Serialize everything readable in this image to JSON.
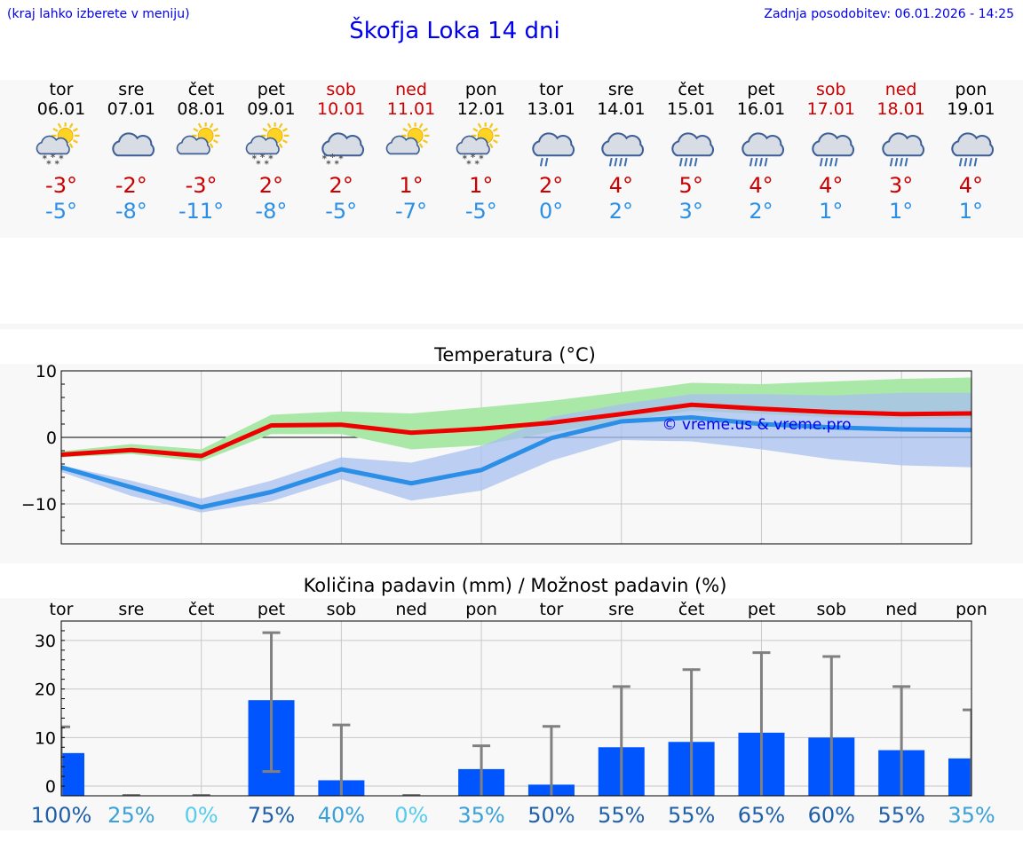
{
  "header": {
    "hint": "(kraj lahko izberete v meniju)",
    "updated": "Zadnja posodobitev: 06.01.2026 - 14:25",
    "title": "Škofja Loka 14 dni"
  },
  "days": [
    {
      "name": "tor",
      "date": "06.01",
      "weekend": false,
      "icon": "sun-cloud-snow",
      "tmax": "-3°",
      "tmin": "-5°"
    },
    {
      "name": "sre",
      "date": "07.01",
      "weekend": false,
      "icon": "cloud",
      "tmax": "-2°",
      "tmin": "-8°"
    },
    {
      "name": "čet",
      "date": "08.01",
      "weekend": false,
      "icon": "sun-cloud",
      "tmax": "-3°",
      "tmin": "-11°"
    },
    {
      "name": "pet",
      "date": "09.01",
      "weekend": false,
      "icon": "sun-cloud-snow",
      "tmax": "2°",
      "tmin": "-8°"
    },
    {
      "name": "sob",
      "date": "10.01",
      "weekend": true,
      "icon": "cloud-snow",
      "tmax": "2°",
      "tmin": "-5°"
    },
    {
      "name": "ned",
      "date": "11.01",
      "weekend": true,
      "icon": "sun-cloud",
      "tmax": "1°",
      "tmin": "-7°"
    },
    {
      "name": "pon",
      "date": "12.01",
      "weekend": false,
      "icon": "sun-cloud-snow",
      "tmax": "1°",
      "tmin": "-5°"
    },
    {
      "name": "tor",
      "date": "13.01",
      "weekend": false,
      "icon": "cloud-rain-light",
      "tmax": "2°",
      "tmin": "0°"
    },
    {
      "name": "sre",
      "date": "14.01",
      "weekend": false,
      "icon": "cloud-rain",
      "tmax": "4°",
      "tmin": "2°"
    },
    {
      "name": "čet",
      "date": "15.01",
      "weekend": false,
      "icon": "cloud-rain",
      "tmax": "5°",
      "tmin": "3°"
    },
    {
      "name": "pet",
      "date": "16.01",
      "weekend": false,
      "icon": "cloud-rain",
      "tmax": "4°",
      "tmin": "2°"
    },
    {
      "name": "sob",
      "date": "17.01",
      "weekend": true,
      "icon": "cloud-rain",
      "tmax": "4°",
      "tmin": "1°"
    },
    {
      "name": "ned",
      "date": "18.01",
      "weekend": true,
      "icon": "cloud-rain",
      "tmax": "3°",
      "tmin": "1°"
    },
    {
      "name": "pon",
      "date": "19.01",
      "weekend": false,
      "icon": "cloud-rain",
      "tmax": "4°",
      "tmin": "1°"
    }
  ],
  "chart_data": [
    {
      "type": "line",
      "title": "Temperatura (°C)",
      "watermark": "© vreme.us & vreme.pro",
      "ylim": [
        -16,
        10
      ],
      "yticks": [
        10,
        0,
        -10
      ],
      "ytick_labels": [
        "10",
        "0",
        "−10"
      ],
      "x": [
        0,
        1,
        2,
        3,
        4,
        5,
        6,
        7,
        8,
        9,
        10,
        11,
        12,
        13
      ],
      "series": [
        {
          "name": "max",
          "color": "#ee0000",
          "values": [
            -2.6,
            -1.9,
            -2.8,
            1.8,
            1.9,
            0.7,
            1.3,
            2.2,
            3.5,
            4.9,
            4.3,
            3.8,
            3.5,
            3.6
          ],
          "band_low": [
            -3.0,
            -2.5,
            -3.6,
            0.5,
            0.5,
            -1.8,
            -1.2,
            0.8,
            2.4,
            4.0,
            3.5,
            3.0,
            2.8,
            2.8
          ],
          "band_high": [
            -2.1,
            -1.0,
            -1.8,
            3.4,
            3.9,
            3.6,
            4.5,
            5.5,
            6.8,
            8.2,
            8.0,
            8.4,
            8.8,
            9.0
          ],
          "band_color": "#aae8a8"
        },
        {
          "name": "min",
          "color": "#2b8fe8",
          "values": [
            -4.5,
            -7.5,
            -10.5,
            -8.2,
            -4.8,
            -6.9,
            -4.9,
            -0.1,
            2.4,
            3.0,
            2.0,
            1.5,
            1.2,
            1.1
          ],
          "band_low": [
            -5.2,
            -8.8,
            -11.3,
            -9.6,
            -6.3,
            -9.5,
            -8.0,
            -3.5,
            -0.4,
            -0.6,
            -1.8,
            -3.3,
            -4.2,
            -4.5
          ],
          "band_high": [
            -4.2,
            -6.5,
            -9.2,
            -6.5,
            -3.0,
            -3.8,
            -1.3,
            3.1,
            5.0,
            6.5,
            6.5,
            6.3,
            6.7,
            6.7
          ],
          "band_color": "#a8c0f0"
        }
      ]
    },
    {
      "type": "bar",
      "title": "Količina padavin (mm) / Možnost padavin (%)",
      "categories": [
        "tor",
        "sre",
        "čet",
        "pet",
        "sob",
        "ned",
        "pon",
        "tor",
        "sre",
        "čet",
        "pet",
        "sob",
        "ned",
        "pon"
      ],
      "ylim": [
        -2,
        34
      ],
      "yticks": [
        30,
        20,
        10,
        0
      ],
      "ytick_labels": [
        "30",
        "20",
        "10",
        "0"
      ],
      "values": [
        6.8,
        0,
        0,
        17.7,
        1.2,
        0,
        3.5,
        0.3,
        8.0,
        9.1,
        11.0,
        10.0,
        7.4,
        5.7
      ],
      "error_low": [
        0,
        0,
        0,
        3.0,
        0,
        0,
        0,
        0,
        0,
        0,
        0,
        0,
        0,
        0
      ],
      "error_high": [
        12.2,
        0,
        0,
        31.6,
        12.6,
        0,
        8.3,
        12.3,
        20.5,
        24.0,
        27.5,
        26.7,
        20.5,
        15.7
      ],
      "probability": [
        "100%",
        "25%",
        "0%",
        "75%",
        "40%",
        "0%",
        "35%",
        "50%",
        "55%",
        "55%",
        "65%",
        "60%",
        "55%",
        "35%"
      ],
      "probability_colors": [
        "#1f5fa8",
        "#3aa0d8",
        "#55ccee",
        "#1f5fa8",
        "#3aa0d8",
        "#55ccee",
        "#3aa0d8",
        "#1f5fa8",
        "#1f5fa8",
        "#1f5fa8",
        "#1f5fa8",
        "#1f5fa8",
        "#1f5fa8",
        "#3aa0d8"
      ],
      "bar_color": "#0055ff",
      "error_color": "#808080"
    }
  ]
}
